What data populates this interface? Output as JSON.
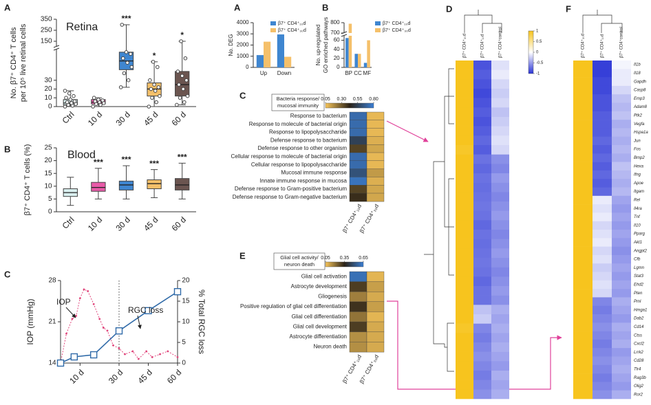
{
  "chart_data": [
    {
      "type": "box",
      "panel": "A",
      "title": "Retina",
      "ylabel": [
        "No. β7⁺ CD4⁺ T cells",
        "per 10⁵ live retinal cells"
      ],
      "categories": [
        "Ctrl",
        "10 d",
        "30 d",
        "45 d",
        "60 d"
      ],
      "colors": [
        "#d8eeee",
        "#e85aa8",
        "#3f86d0",
        "#f5c06a",
        "#6b5550"
      ],
      "ylim": [
        0,
        350
      ],
      "ybreak": [
        65,
        100
      ],
      "yticks": [
        0,
        10,
        20,
        30,
        150,
        250,
        350
      ],
      "boxes": [
        {
          "min": 0,
          "q1": 2,
          "median": 4,
          "q3": 8,
          "max": 18
        },
        {
          "min": 0,
          "q1": 3,
          "median": 5,
          "q3": 8,
          "max": 10
        },
        {
          "min": 22,
          "q1": 42,
          "median": 52,
          "q3": 62,
          "max": 300
        },
        {
          "min": 0,
          "q1": 12,
          "median": 20,
          "q3": 27,
          "max": 51
        },
        {
          "min": 2,
          "q1": 12,
          "median": 25,
          "q3": 40,
          "max": 150
        }
      ],
      "points": [
        [
          0,
          1,
          2,
          3,
          4,
          5,
          6,
          8,
          10,
          12,
          15,
          18
        ],
        [
          0,
          2,
          3,
          4,
          5,
          6,
          7,
          8,
          10
        ],
        [
          22,
          30,
          38,
          45,
          50,
          55,
          60,
          62,
          300
        ],
        [
          0,
          5,
          10,
          12,
          18,
          20,
          22,
          25,
          30,
          45,
          51
        ],
        [
          2,
          5,
          10,
          12,
          20,
          25,
          30,
          35,
          40,
          55,
          150
        ]
      ],
      "significance": [
        null,
        null,
        "***",
        "*",
        "*"
      ]
    },
    {
      "type": "box",
      "panel": "B",
      "title": "Blood",
      "ylabel": "β7⁺ CD4⁺ T cells (%)",
      "categories": [
        "Ctrl",
        "10 d",
        "30 d",
        "45 d",
        "60 d"
      ],
      "colors": [
        "#d8eeee",
        "#e85aa8",
        "#3f86d0",
        "#f5c06a",
        "#6b5550"
      ],
      "ylim": [
        0,
        25
      ],
      "yticks": [
        0,
        5,
        10,
        15,
        20,
        25
      ],
      "boxes": [
        {
          "min": 2.5,
          "q1": 6,
          "median": 7.5,
          "q3": 9,
          "max": 13.5
        },
        {
          "min": 5,
          "q1": 8,
          "median": 9.5,
          "q3": 11.5,
          "max": 17
        },
        {
          "min": 5,
          "q1": 8.5,
          "median": 10.5,
          "q3": 12,
          "max": 18
        },
        {
          "min": 5.5,
          "q1": 9,
          "median": 11,
          "q3": 12.5,
          "max": 16.5
        },
        {
          "min": 5,
          "q1": 8.5,
          "median": 10.5,
          "q3": 13,
          "max": 19
        }
      ],
      "significance": [
        null,
        "***",
        "***",
        "***",
        "***"
      ]
    },
    {
      "type": "line",
      "panel": "C",
      "ylabel": "IOP (mmHg)",
      "y2label": "% Total RGC loss",
      "xlim": [
        0,
        60
      ],
      "xticks": [
        {
          "value": 10,
          "label": "10 d"
        },
        {
          "value": 30,
          "label": "30 d"
        },
        {
          "value": 45,
          "label": "45 d"
        },
        {
          "value": 60,
          "label": "60 d"
        }
      ],
      "ylim": [
        14,
        28
      ],
      "yticks": [
        14,
        21,
        28
      ],
      "y2lim": [
        0,
        20
      ],
      "y2ticks": [
        0,
        5,
        10,
        15,
        20
      ],
      "vline": 30,
      "series": [
        {
          "name": "IOP",
          "color": "#e0457b",
          "style": "dotted",
          "x": [
            0,
            3,
            6,
            8,
            10,
            12,
            14,
            17,
            20,
            22,
            24,
            27,
            30,
            33,
            37,
            40,
            44,
            47,
            51,
            55,
            60
          ],
          "values": [
            14,
            19,
            21.5,
            22,
            25,
            26.5,
            26.2,
            24,
            21.5,
            20,
            19.5,
            17,
            16.5,
            15.5,
            16,
            14.7,
            16,
            15,
            15.5,
            16,
            15
          ]
        },
        {
          "name": "RGC loss",
          "color": "#2f6aa8",
          "axis": "y2",
          "marker": "square",
          "x": [
            0,
            7,
            17,
            30,
            45,
            60
          ],
          "values": [
            0,
            1.5,
            2,
            7.8,
            12.7,
            17.3
          ]
        }
      ]
    },
    {
      "type": "bar",
      "panel": "A",
      "ylabel": "No. DEG",
      "categories": [
        "Up",
        "Down"
      ],
      "ylim": [
        0,
        4000
      ],
      "yticks": [
        0,
        1000,
        2000,
        3000,
        4000
      ],
      "series": [
        {
          "name": "β7⁺ CD4⁺₁₀d",
          "color": "#3f86d0",
          "values": [
            1100,
            2950
          ]
        },
        {
          "name": "β7⁺ CD4⁺₃₀d",
          "color": "#f5c06a",
          "values": [
            2300,
            950
          ]
        }
      ]
    },
    {
      "type": "bar",
      "panel": "B",
      "ylabel": [
        "No. up-regulated",
        "GO enriched pathways"
      ],
      "categories": [
        "BP",
        "CC",
        "MF"
      ],
      "ylim": [
        0,
        800
      ],
      "ybreak": [
        70,
        700
      ],
      "yticks": [
        0,
        20,
        40,
        60,
        700,
        800
      ],
      "series": [
        {
          "name": "β7⁺ CD4⁺₁₀d",
          "color": "#3f86d0",
          "values": [
            65,
            30,
            10
          ]
        },
        {
          "name": "β7⁺ CD4⁺₃₀d",
          "color": "#f5c06a",
          "values": [
            790,
            30,
            60
          ]
        }
      ]
    },
    {
      "type": "heatmap",
      "panel": "C",
      "title": [
        "Bacteria response/",
        "mucosal immunity"
      ],
      "rows": [
        "Response to bacterium",
        "Response to molecule of bacterial origin",
        "Response to lipopolysaccharide",
        "Defense response to bacterium",
        "Defense response to other organism",
        "Cellular response to molecule of bacterial origin",
        "Cellular response to lipopolysaccharide",
        "Mucosal immune response",
        "Innate immune response in mucosa",
        "Defense response to Gram-positive bacterium",
        "Defense response to Gram-negative bacterium"
      ],
      "columns": [
        "β7⁺ CD4⁺₁₀d",
        "β7⁺ CD4⁺₃₀d"
      ],
      "values": [
        [
          0.72,
          0.08
        ],
        [
          0.72,
          0.08
        ],
        [
          0.72,
          0.08
        ],
        [
          0.55,
          0.1
        ],
        [
          0.35,
          0.12
        ],
        [
          0.72,
          0.08
        ],
        [
          0.72,
          0.08
        ],
        [
          0.62,
          0.15
        ],
        [
          0.75,
          0.1
        ],
        [
          0.35,
          0.12
        ],
        [
          0.4,
          0.12
        ]
      ],
      "clim": [
        0.05,
        0.8
      ],
      "colors": [
        "#f7c55a",
        "#2b2217",
        "#3b7fd4"
      ],
      "cticks": [
        0.05,
        {
          "value": 0.3,
          "label": "0.30"
        },
        0.55,
        {
          "value": 0.8,
          "label": "0.80"
        }
      ]
    },
    {
      "type": "heatmap",
      "panel": "E",
      "title": [
        "Glial cell activity/",
        "neuron death"
      ],
      "rows": [
        "Glial cell activation",
        "Astrocyte development",
        "Gliogenesis",
        "Positive regulation of glial cell differentiation",
        "Glial cell differentiation",
        "Glial cell development",
        "Astrocyte differentiation",
        "Neuron death"
      ],
      "columns": [
        "β7⁺ CD4⁺₁₀d",
        "β7⁺ CD4⁺₃₀d"
      ],
      "values": [
        [
          0.6,
          0.08
        ],
        [
          0.3,
          0.12
        ],
        [
          0.18,
          0.1
        ],
        [
          0.32,
          0.12
        ],
        [
          0.2,
          0.08
        ],
        [
          0.3,
          0.1
        ],
        [
          0.15,
          0.1
        ],
        [
          0.15,
          0.1
        ]
      ],
      "clim": [
        0.05,
        0.65
      ],
      "colors": [
        "#f7c55a",
        "#2b2217",
        "#3b7fd4"
      ],
      "cticks": [
        0.05,
        0.35,
        0.65
      ]
    },
    {
      "type": "heatmap",
      "panel": "D",
      "columns": [
        "β7⁺ CD4⁺₃₀d",
        "β7⁺ CD4⁺₁₀d",
        "β7⁺ CD4⁺control"
      ],
      "values": [
        [
          1,
          -0.85,
          -0.15
        ],
        [
          1,
          -0.8,
          -0.1
        ],
        [
          1,
          -0.85,
          -0.2
        ],
        [
          1,
          -0.9,
          -0.25
        ],
        [
          1,
          -0.85,
          -0.2
        ],
        [
          1,
          -0.8,
          -0.3
        ],
        [
          1,
          -0.85,
          -0.25
        ],
        [
          1,
          -0.8,
          -0.2
        ],
        [
          1,
          -0.75,
          -0.15
        ],
        [
          0.95,
          -0.8,
          -0.2
        ],
        [
          1,
          -0.7,
          -0.55
        ],
        [
          1,
          -0.75,
          -0.6
        ],
        [
          1,
          -0.7,
          -0.5
        ],
        [
          1,
          -0.72,
          -0.55
        ],
        [
          1,
          -0.7,
          -0.6
        ],
        [
          1,
          -0.68,
          -0.55
        ],
        [
          1,
          -0.7,
          -0.5
        ],
        [
          1,
          -0.75,
          -0.55
        ],
        [
          1,
          -0.7,
          -0.6
        ],
        [
          1,
          -0.72,
          -0.55
        ],
        [
          1,
          -0.7,
          -0.5
        ],
        [
          1,
          -0.68,
          -0.55
        ],
        [
          1,
          -0.7,
          -0.6
        ],
        [
          1,
          -0.75,
          -0.55
        ],
        [
          1,
          -0.7,
          -0.5
        ],
        [
          1,
          -0.7,
          -0.55
        ],
        [
          1,
          -0.3,
          -0.4
        ],
        [
          1,
          -0.25,
          -0.45
        ],
        [
          0.95,
          -0.6,
          -0.4
        ],
        [
          1,
          -0.65,
          -0.45
        ],
        [
          1,
          -0.6,
          -0.4
        ],
        [
          1,
          -0.55,
          -0.45
        ],
        [
          1,
          -0.6,
          -0.5
        ],
        [
          1,
          -0.65,
          -0.4
        ],
        [
          1,
          -0.6,
          -0.45
        ],
        [
          1,
          -0.55,
          -0.4
        ]
      ],
      "clim": [
        -1,
        1
      ],
      "colors": [
        "#2b35d6",
        "#ffffff",
        "#f7c41e"
      ],
      "cticks": [
        1,
        0.5,
        0,
        -0.5,
        -1
      ]
    },
    {
      "type": "heatmap",
      "panel": "F",
      "rows": [
        "Il1b",
        "Il18",
        "Gapdh",
        "Casp8",
        "Emp3",
        "Adam8",
        "Ptk2",
        "Vegfa",
        "Hspa1a",
        "Jun",
        "Fos",
        "Bmp2",
        "Hexa",
        "Ifng",
        "Apoe",
        "Itgam",
        "Rel",
        "Il4ra",
        "Tnf",
        "Il10",
        "Pparg",
        "Akt1",
        "Angpt2",
        "Cfb",
        "Lgmn",
        "Stat3",
        "Ehd2",
        "Pten",
        "Pml",
        "Hmga1",
        "Dab2",
        "Cd14",
        "Ctss",
        "Cxcl2",
        "Lrrk2",
        "Cd28",
        "Tlr4",
        "Rag3b",
        "Olig2",
        "Ror2"
      ],
      "columns": [
        "β7⁺ CD4⁺₃₀d",
        "β7⁺ CD4⁺₁₀d",
        "β7⁺ CD4⁺control"
      ],
      "values": [
        [
          1,
          -0.95,
          -0.05
        ],
        [
          1,
          -0.95,
          -0.1
        ],
        [
          1,
          -0.9,
          -0.1
        ],
        [
          1,
          -0.9,
          -0.2
        ],
        [
          1,
          -0.85,
          -0.3
        ],
        [
          1,
          -0.85,
          -0.35
        ],
        [
          1,
          -0.8,
          -0.3
        ],
        [
          1,
          -0.8,
          -0.4
        ],
        [
          1,
          -0.8,
          -0.35
        ],
        [
          1,
          -0.75,
          -0.4
        ],
        [
          1,
          -0.8,
          -0.35
        ],
        [
          1,
          -0.75,
          -0.4
        ],
        [
          1,
          -0.8,
          -0.3
        ],
        [
          1,
          -0.75,
          -0.35
        ],
        [
          1,
          -0.8,
          -0.4
        ],
        [
          1,
          -0.75,
          -0.35
        ],
        [
          1,
          -0.1,
          -0.45
        ],
        [
          1,
          -0.15,
          -0.5
        ],
        [
          1,
          -0.1,
          -0.45
        ],
        [
          1,
          -0.2,
          -0.5
        ],
        [
          1,
          -0.15,
          -0.45
        ],
        [
          1,
          -0.1,
          -0.5
        ],
        [
          1,
          -0.2,
          -0.55
        ],
        [
          1,
          -0.15,
          -0.5
        ],
        [
          1,
          -0.25,
          -0.45
        ],
        [
          1,
          -0.2,
          -0.5
        ],
        [
          1,
          -0.15,
          -0.45
        ],
        [
          1,
          -0.2,
          -0.5
        ],
        [
          1,
          -0.6,
          -0.4
        ],
        [
          1,
          -0.65,
          -0.45
        ],
        [
          1,
          -0.6,
          -0.5
        ],
        [
          1,
          -0.55,
          -0.4
        ],
        [
          1,
          -0.6,
          -0.45
        ],
        [
          1,
          -0.65,
          -0.4
        ],
        [
          1,
          -0.6,
          -0.5
        ],
        [
          1,
          -0.55,
          -0.45
        ],
        [
          1,
          -0.6,
          -0.4
        ],
        [
          1,
          -0.65,
          -0.45
        ],
        [
          1,
          -0.6,
          -0.5
        ],
        [
          1,
          -0.55,
          -0.4
        ]
      ],
      "clim": [
        -1,
        1
      ],
      "colors": [
        "#2b35d6",
        "#ffffff",
        "#f7c41e"
      ]
    }
  ]
}
